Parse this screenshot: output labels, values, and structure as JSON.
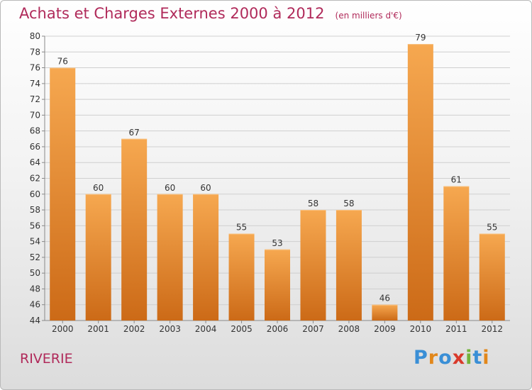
{
  "chart_data": {
    "type": "bar",
    "title": "Achats et Charges Externes 2000 à 2012",
    "subtitle": "(en milliers d'€)",
    "categories": [
      "2000",
      "2001",
      "2002",
      "2003",
      "2004",
      "2005",
      "2006",
      "2007",
      "2008",
      "2009",
      "2010",
      "2011",
      "2012"
    ],
    "values": [
      76,
      60,
      67,
      60,
      60,
      55,
      53,
      58,
      58,
      46,
      79,
      61,
      55
    ],
    "ylim": [
      44,
      80
    ],
    "yticks": [
      44,
      46,
      48,
      50,
      52,
      54,
      56,
      58,
      60,
      62,
      64,
      66,
      68,
      70,
      72,
      74,
      76,
      78,
      80
    ],
    "grid": true,
    "bar_color_top": "#f6a850",
    "bar_color_bottom": "#cc6a17"
  },
  "commune": "RIVERIE",
  "logo": {
    "text": "Proxiti",
    "colors": [
      "#3a8fd6",
      "#e2871a",
      "#3a8fd6",
      "#d93a2b",
      "#73b33a",
      "#3a8fd6",
      "#e2871a"
    ]
  }
}
